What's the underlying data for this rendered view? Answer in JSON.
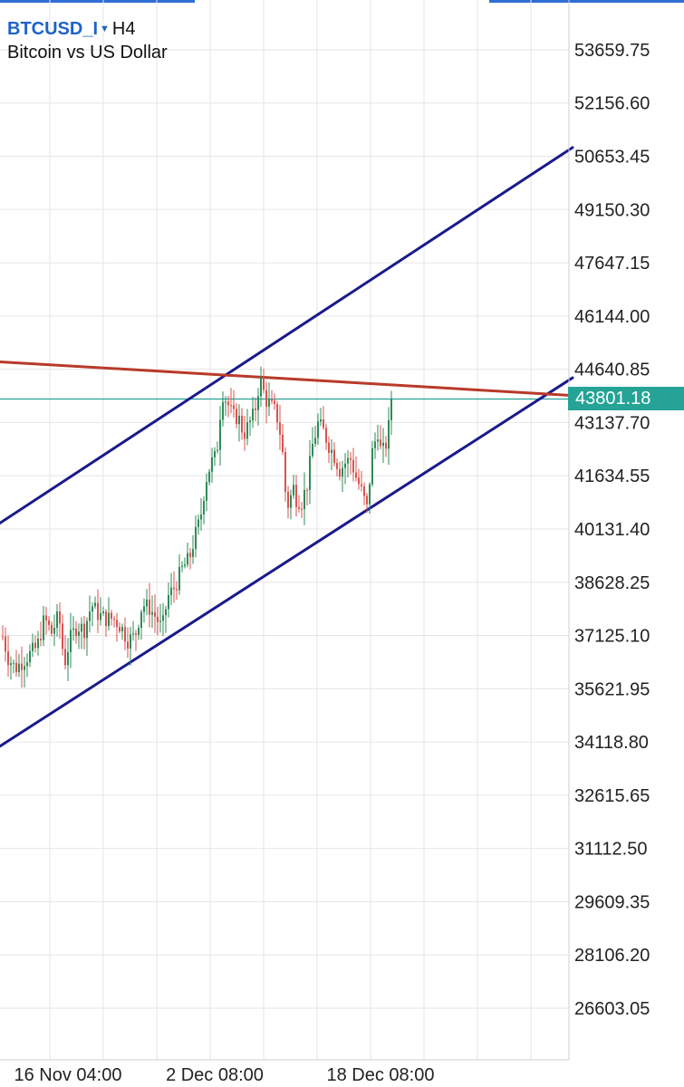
{
  "header": {
    "symbol": "BTCUSD_I",
    "timeframe": "H4",
    "description": "Bitcoin vs US Dollar"
  },
  "colors": {
    "candle_up": "#2e8b57",
    "candle_down": "#d9534f",
    "channel": "#1a1a8c",
    "resistance": "#b83a2a",
    "price_line": "#25a396",
    "grid": "#e6e6e6",
    "topbar": "#2f6fd6"
  },
  "chart_data": {
    "type": "candlestick",
    "timeframe": "H4",
    "y_ticks": [
      "53659.75",
      "52156.60",
      "50653.45",
      "49150.30",
      "47647.15",
      "46144.00",
      "44640.85",
      "43137.70",
      "41634.55",
      "40131.40",
      "38628.25",
      "37125.10",
      "35621.95",
      "34118.80",
      "32615.65",
      "31112.50",
      "29609.35",
      "28106.20",
      "26603.05"
    ],
    "x_ticks": [
      "16 Nov 04:00",
      "2 Dec 08:00",
      "18 Dec 08:00"
    ],
    "current_price": "43801.18",
    "close_path": [
      [
        0,
        37300
      ],
      [
        8,
        36500
      ],
      [
        16,
        36200
      ],
      [
        24,
        36400
      ],
      [
        32,
        36600
      ],
      [
        40,
        36800
      ],
      [
        48,
        37600
      ],
      [
        56,
        37200
      ],
      [
        64,
        37700
      ],
      [
        70,
        36300
      ],
      [
        76,
        37000
      ],
      [
        84,
        37400
      ],
      [
        92,
        37300
      ],
      [
        100,
        38000
      ],
      [
        108,
        37700
      ],
      [
        116,
        37600
      ],
      [
        124,
        37600
      ],
      [
        132,
        37400
      ],
      [
        140,
        37000
      ],
      [
        148,
        37100
      ],
      [
        156,
        38000
      ],
      [
        164,
        37900
      ],
      [
        172,
        37600
      ],
      [
        178,
        37300
      ],
      [
        184,
        38200
      ],
      [
        192,
        38500
      ],
      [
        200,
        39000
      ],
      [
        208,
        39300
      ],
      [
        214,
        39900
      ],
      [
        220,
        40400
      ],
      [
        226,
        41500
      ],
      [
        232,
        42000
      ],
      [
        238,
        42200
      ],
      [
        244,
        44000
      ],
      [
        250,
        43700
      ],
      [
        256,
        43300
      ],
      [
        262,
        43300
      ],
      [
        268,
        42800
      ],
      [
        274,
        43100
      ],
      [
        280,
        43400
      ],
      [
        286,
        44400
      ],
      [
        292,
        43800
      ],
      [
        298,
        43600
      ],
      [
        304,
        43400
      ],
      [
        310,
        42600
      ],
      [
        314,
        41200
      ],
      [
        318,
        40700
      ],
      [
        322,
        41400
      ],
      [
        326,
        41000
      ],
      [
        332,
        40900
      ],
      [
        338,
        41400
      ],
      [
        344,
        42500
      ],
      [
        350,
        43100
      ],
      [
        356,
        42900
      ],
      [
        362,
        42500
      ],
      [
        368,
        42200
      ],
      [
        374,
        41800
      ],
      [
        380,
        42000
      ],
      [
        386,
        42100
      ],
      [
        392,
        41600
      ],
      [
        398,
        41200
      ],
      [
        404,
        40700
      ],
      [
        410,
        42300
      ],
      [
        416,
        42900
      ],
      [
        420,
        42200
      ],
      [
        426,
        42600
      ],
      [
        432,
        43800
      ]
    ],
    "trendlines": [
      {
        "role": "channel-upper",
        "p1": [
          0,
          40300
        ],
        "p2": [
          632,
          50900
        ]
      },
      {
        "role": "channel-lower",
        "p1": [
          0,
          34000
        ],
        "p2": [
          632,
          44400
        ]
      },
      {
        "role": "resistance",
        "p1": [
          0,
          44850
        ],
        "p2": [
          632,
          43900
        ]
      }
    ],
    "price_line": 43801.18
  }
}
